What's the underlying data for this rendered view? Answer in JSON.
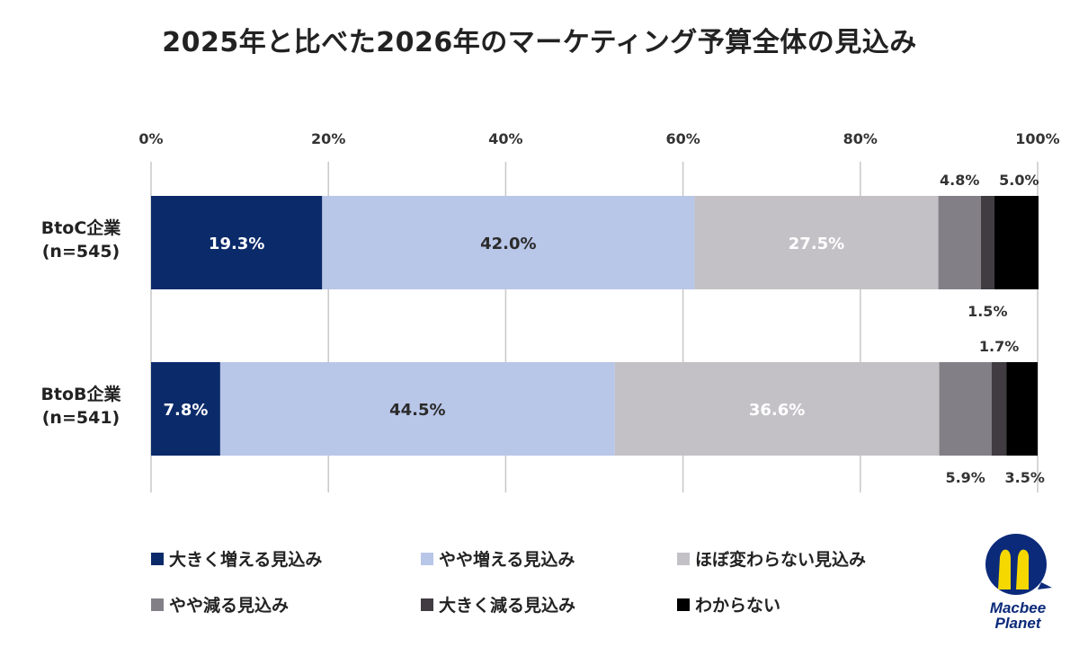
{
  "chart_data": {
    "type": "bar",
    "orientation": "horizontal",
    "stacked": true,
    "title": "2025年と比べた2026年のマーケティング予算全体の見込み",
    "categories": [
      "BtoC企業\n(n=545)",
      "BtoB企業\n(n=541)"
    ],
    "category_lines": [
      [
        "BtoC企業",
        "(n=545)"
      ],
      [
        "BtoB企業",
        "(n=541)"
      ]
    ],
    "xlim": [
      0,
      100
    ],
    "ticks": [
      "0%",
      "20%",
      "40%",
      "60%",
      "80%",
      "100%"
    ],
    "tick_values": [
      0,
      20,
      40,
      60,
      80,
      100
    ],
    "grid": true,
    "legend_position": "bottom",
    "series": [
      {
        "name": "大きく増える見込み",
        "color": "#0b2a6a",
        "values": [
          19.3,
          7.8
        ],
        "labels": [
          "19.3%",
          "7.8%"
        ]
      },
      {
        "name": "やや増える見込み",
        "color": "#b8c6e8",
        "values": [
          42.0,
          44.5
        ],
        "labels": [
          "42.0%",
          "44.5%"
        ]
      },
      {
        "name": "ほぼ変わらない見込み",
        "color": "#c3c1c6",
        "values": [
          27.5,
          36.6
        ],
        "labels": [
          "27.5%",
          "36.6%"
        ]
      },
      {
        "name": "やや減る見込み",
        "color": "#828086",
        "values": [
          4.8,
          5.9
        ],
        "labels": [
          "4.8%",
          "5.9%"
        ]
      },
      {
        "name": "大きく減る見込み",
        "color": "#403c42",
        "values": [
          1.5,
          1.7
        ],
        "labels": [
          "1.5%",
          "1.7%"
        ]
      },
      {
        "name": "わからない",
        "color": "#000000",
        "values": [
          5.0,
          3.5
        ],
        "labels": [
          "5.0%",
          "3.5%"
        ]
      }
    ]
  },
  "logo": {
    "text_line1": "Macbee",
    "text_line2": "Planet",
    "primary_color": "#0b2a7a",
    "accent_color": "#f5d800"
  }
}
